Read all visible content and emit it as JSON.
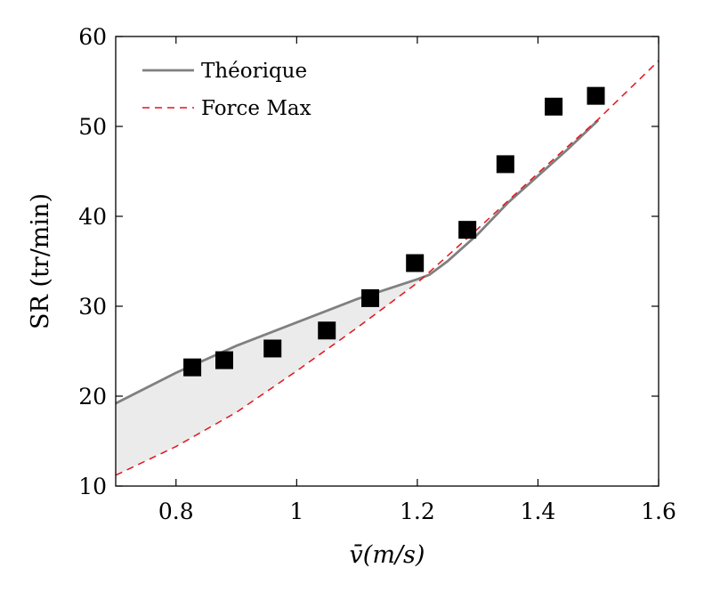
{
  "chart_data": {
    "type": "line",
    "title": "",
    "xlabel": "v̄(m/s)",
    "ylabel": "SR (tr/min)",
    "xlim": [
      0.7,
      1.6
    ],
    "ylim": [
      10,
      60
    ],
    "xticks": [
      0.8,
      1,
      1.2,
      1.4,
      1.6
    ],
    "xtick_labels": [
      "0.8",
      "1",
      "1.2",
      "1.4",
      "1.6"
    ],
    "yticks": [
      10,
      20,
      30,
      40,
      50,
      60
    ],
    "ytick_labels": [
      "10",
      "20",
      "30",
      "40",
      "50",
      "60"
    ],
    "grid": false,
    "legend_position": "top-left",
    "series": [
      {
        "name": "Théorique",
        "style": "solid",
        "color": "#808080",
        "x": [
          0.7,
          0.8,
          0.9,
          1.0,
          1.1,
          1.2,
          1.22,
          1.25,
          1.3,
          1.35,
          1.4,
          1.45,
          1.5
        ],
        "y": [
          19.2,
          22.6,
          25.6,
          28.2,
          30.8,
          33.0,
          33.5,
          35.0,
          38.0,
          41.5,
          44.5,
          47.5,
          50.7
        ]
      },
      {
        "name": "Force Max",
        "style": "dashed",
        "color": "#e3141b",
        "x": [
          0.7,
          0.8,
          0.9,
          1.0,
          1.1,
          1.2,
          1.3,
          1.4,
          1.5,
          1.6
        ],
        "y": [
          11.2,
          14.4,
          18.2,
          22.8,
          27.6,
          32.6,
          38.6,
          44.8,
          50.8,
          57.3
        ]
      },
      {
        "name": "",
        "style": "markers",
        "marker": "square",
        "color": "#000000",
        "x": [
          0.827,
          0.88,
          0.96,
          1.05,
          1.122,
          1.196,
          1.283,
          1.346,
          1.426,
          1.496
        ],
        "y": [
          23.2,
          24.0,
          25.3,
          27.3,
          30.9,
          34.8,
          38.5,
          45.8,
          52.2,
          53.4
        ]
      }
    ],
    "shaded_region": {
      "between": [
        "Théorique",
        "Force Max"
      ],
      "x": [
        0.7,
        0.8,
        0.9,
        1.0,
        1.1,
        1.2,
        1.21
      ],
      "upper": [
        19.2,
        22.6,
        25.6,
        28.2,
        30.8,
        33.0,
        33.2
      ],
      "lower": [
        11.2,
        14.4,
        18.2,
        22.8,
        27.6,
        32.6,
        33.2
      ],
      "color": "#ebebeb"
    }
  }
}
